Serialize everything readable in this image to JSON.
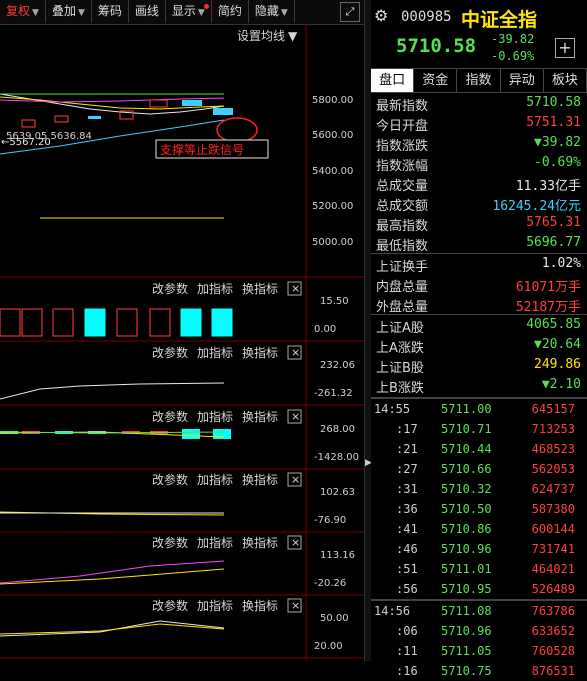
{
  "toolbar": {
    "items": [
      {
        "label": "复权",
        "dropdown": true,
        "active": true
      },
      {
        "label": "叠加",
        "dropdown": true
      },
      {
        "label": "筹码"
      },
      {
        "label": "画线"
      },
      {
        "label": "显示",
        "dropdown": true,
        "dot": true
      },
      {
        "label": "简约"
      },
      {
        "label": "隐藏",
        "dropdown": true
      }
    ],
    "fullscreen_icon": "fullscreen-icon"
  },
  "main_chart": {
    "ma_setting": "设置均线",
    "y_ticks": [
      "5800.00",
      "5600.00",
      "5400.00",
      "5200.00",
      "5000.00"
    ],
    "low_marker": "←5567.20",
    "hl_label": "5639.05 5636.84",
    "annotation": "支撑等止跌信号"
  },
  "indicator_panels": [
    {
      "params": "改参数",
      "add": "加指标",
      "switch": "换指标",
      "ticks": [
        "15.50",
        "0.00"
      ]
    },
    {
      "params": "改参数",
      "add": "加指标",
      "switch": "换指标",
      "ticks": [
        "232.06",
        "-261.32"
      ]
    },
    {
      "params": "改参数",
      "add": "加指标",
      "switch": "换指标",
      "ticks": [
        "268.00",
        "-1428.00"
      ]
    },
    {
      "params": "改参数",
      "add": "加指标",
      "switch": "换指标",
      "ticks": [
        "102.63",
        "-76.90"
      ]
    },
    {
      "params": "改参数",
      "add": "加指标",
      "switch": "换指标",
      "ticks": [
        "113.16",
        "-20.26"
      ]
    },
    {
      "params": "改参数",
      "add": "加指标",
      "switch": "换指标",
      "ticks": [
        "50.00",
        "20.00"
      ]
    }
  ],
  "quote": {
    "code": "000985",
    "name": "中证全指",
    "price": "5710.58",
    "change": "-39.82",
    "change_pct": "-0.69%",
    "plus": "+",
    "settings_icon": "gear-icon"
  },
  "tabs": [
    "盘口",
    "资金",
    "指数",
    "异动",
    "板块"
  ],
  "stats_a": [
    {
      "label": "最新指数",
      "value": "5710.58",
      "color": "g"
    },
    {
      "label": "今日开盘",
      "value": "5751.31",
      "color": "r"
    },
    {
      "label": "指数涨跌",
      "value": "▼39.82",
      "color": "g"
    },
    {
      "label": "指数涨幅",
      "value": "-0.69%",
      "color": "g"
    },
    {
      "label": "总成交量",
      "value": "11.33亿手",
      "color": "w"
    },
    {
      "label": "总成交额",
      "value": "16245.24亿元",
      "color": "c"
    },
    {
      "label": "最高指数",
      "value": "5765.31",
      "color": "r"
    },
    {
      "label": "最低指数",
      "value": "5696.77",
      "color": "g"
    }
  ],
  "stats_b": [
    {
      "label": "上证换手",
      "value": "1.02%",
      "color": "w"
    },
    {
      "label": "内盘总量",
      "value": "61071万手",
      "color": "r"
    },
    {
      "label": "外盘总量",
      "value": "52187万手",
      "color": "r"
    }
  ],
  "stats_c": [
    {
      "label": "上证A股",
      "value": "4065.85",
      "color": "g"
    },
    {
      "label": "上A涨跌",
      "value": "▼20.64",
      "color": "g"
    },
    {
      "label": "上证B股",
      "value": "249.86",
      "color": "y"
    },
    {
      "label": "上B涨跌",
      "value": "▼2.10",
      "color": "g"
    }
  ],
  "ticks": [
    {
      "time": "14:55",
      "price": "5711.00",
      "vol": "645157",
      "minute": true
    },
    {
      "time": ":17",
      "price": "5710.71",
      "vol": "713253"
    },
    {
      "time": ":21",
      "price": "5710.44",
      "vol": "468523"
    },
    {
      "time": ":27",
      "price": "5710.66",
      "vol": "562053"
    },
    {
      "time": ":31",
      "price": "5710.32",
      "vol": "624737"
    },
    {
      "time": ":36",
      "price": "5710.50",
      "vol": "587380"
    },
    {
      "time": ":41",
      "price": "5710.86",
      "vol": "600144"
    },
    {
      "time": ":46",
      "price": "5710.96",
      "vol": "731741"
    },
    {
      "time": ":51",
      "price": "5711.01",
      "vol": "464021"
    },
    {
      "time": ":56",
      "price": "5710.95",
      "vol": "526489"
    },
    {
      "time": "14:56",
      "price": "5711.08",
      "vol": "763786",
      "minute": true
    },
    {
      "time": ":06",
      "price": "5710.96",
      "vol": "633652"
    },
    {
      "time": ":11",
      "price": "5711.05",
      "vol": "760528"
    },
    {
      "time": ":16",
      "price": "5710.75",
      "vol": "876531"
    }
  ]
}
